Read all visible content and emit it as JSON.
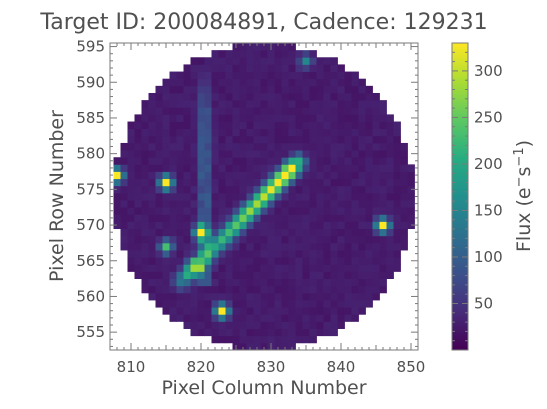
{
  "chart_data": {
    "type": "heatmap",
    "title": "Target ID: 200084891, Cadence: 129231",
    "xlabel": "Pixel Column Number",
    "ylabel": "Pixel Row Number",
    "colorbar_label": "Flux (e⁻s⁻¹)",
    "xlim": [
      807,
      851
    ],
    "ylim": [
      552.5,
      595.5
    ],
    "x_ticks": [
      810,
      820,
      830,
      840,
      850
    ],
    "y_ticks": [
      555,
      560,
      565,
      570,
      575,
      580,
      585,
      590,
      595
    ],
    "colorbar_ticks": [
      50,
      100,
      150,
      200,
      250,
      300
    ],
    "colorbar_range": [
      0,
      330
    ],
    "colormap": "viridis",
    "aperture_shape": "circle",
    "aperture_center": [
      829,
      574
    ],
    "aperture_radius": 21.5,
    "background_flux": 18,
    "features": [
      {
        "name": "diagonal streak",
        "from": [
          820,
          565
        ],
        "to": [
          833,
          578
        ],
        "peak_flux": 330
      },
      {
        "name": "vertical bleed column",
        "column": 820.5,
        "row_range": [
          562,
          592
        ],
        "flux": 95
      },
      {
        "name": "star",
        "center": [
          820,
          569
        ],
        "flux": 330
      },
      {
        "name": "star",
        "center": [
          823,
          558
        ],
        "flux": 330
      },
      {
        "name": "star",
        "center": [
          815,
          576
        ],
        "flux": 320
      },
      {
        "name": "star",
        "center": [
          808,
          577
        ],
        "flux": 300
      },
      {
        "name": "star",
        "center": [
          846,
          570
        ],
        "flux": 320
      },
      {
        "name": "star",
        "center": [
          815,
          567
        ],
        "flux": 200
      },
      {
        "name": "star",
        "center": [
          835,
          593
        ],
        "flux": 130
      }
    ]
  }
}
